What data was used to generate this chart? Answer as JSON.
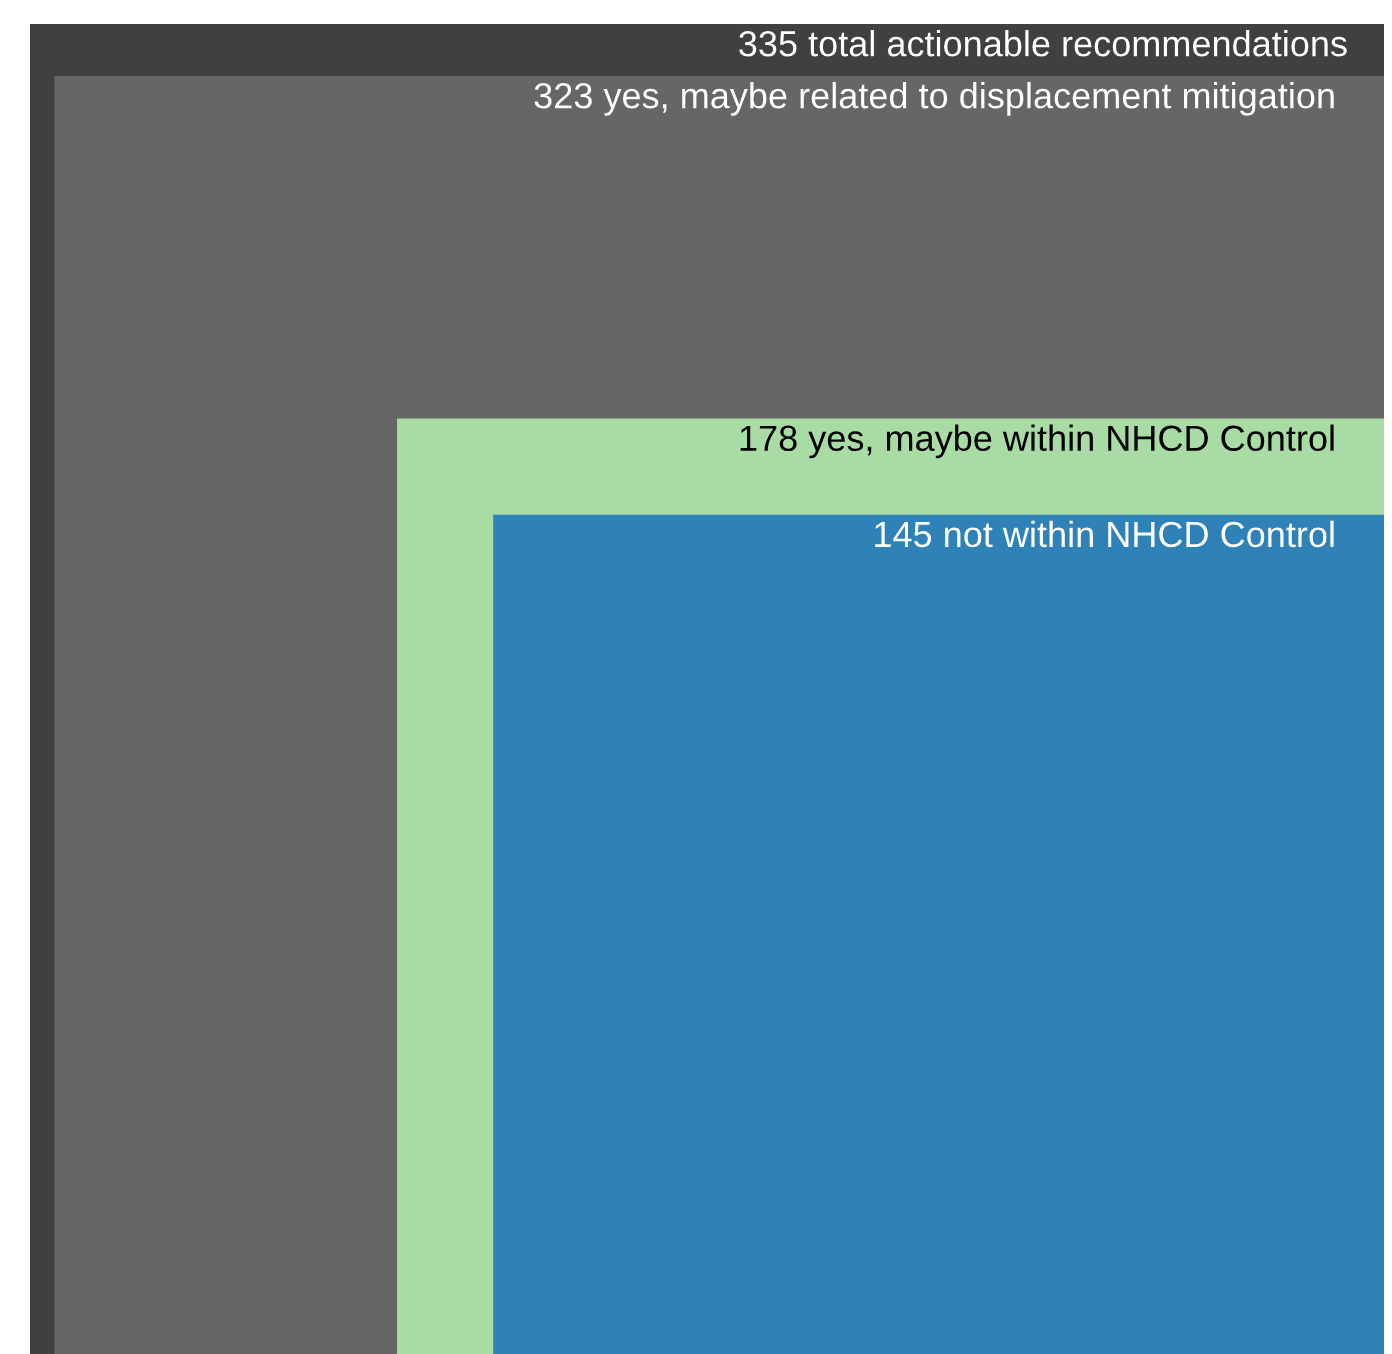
{
  "chart_data": {
    "type": "other",
    "categories": [
      null,
      null,
      null,
      null
    ],
    "values": [
      335,
      323,
      178,
      145
    ],
    "value_labels": [
      "335 total actionable recommendations",
      "323 yes, maybe related to displacement mitigation",
      "178 yes, maybe within NHCD Control",
      "145 not within NHCD Control"
    ],
    "colors": [
      "#404040",
      "#666666",
      "#a8dca4",
      "#2e82b8"
    ]
  }
}
